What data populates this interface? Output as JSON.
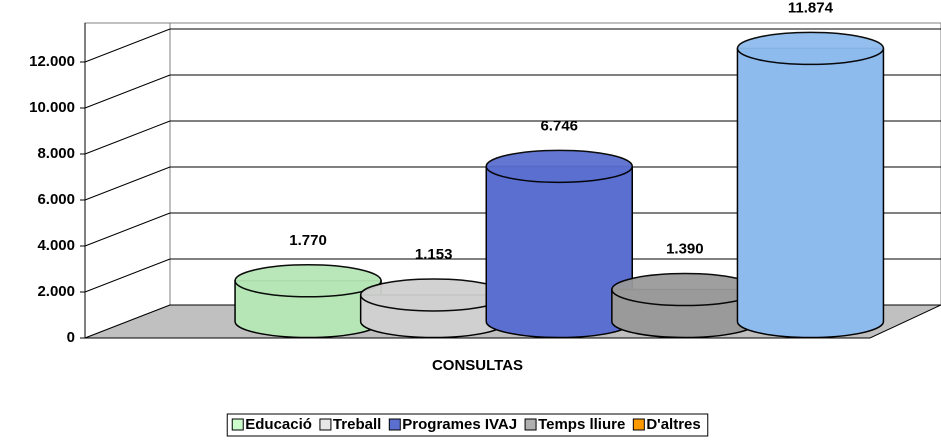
{
  "chart_data": {
    "type": "cylinder-bar",
    "categories": [
      "CONSULTAS"
    ],
    "series": [
      {
        "name": "Educació",
        "color": "#ccffcc",
        "mark_color": "#b6e6b6",
        "values": [
          1770
        ],
        "value_labels": [
          "1.770"
        ]
      },
      {
        "name": "Treball",
        "color": "#e6e6e6",
        "mark_color": "#d0d0d0",
        "values": [
          1153
        ],
        "value_labels": [
          "1.153"
        ]
      },
      {
        "name": "Programes IVAJ",
        "color": "#5a6fd0",
        "mark_color": "#5a6fd0",
        "values": [
          6746
        ],
        "value_labels": [
          "6.746"
        ]
      },
      {
        "name": "Temps lliure",
        "color": "#b0b0b0",
        "mark_color": "#9a9a9a",
        "values": [
          1390
        ],
        "value_labels": [
          "1.390"
        ]
      },
      {
        "name": "D'altres",
        "color": "#ff9900",
        "mark_color": "#8ebbee",
        "values": [
          11874
        ],
        "value_labels": [
          "11.874"
        ]
      }
    ],
    "ylim": [
      0,
      14000
    ],
    "yticks": [
      0,
      {
        "value": 2000,
        "label": "2.000"
      },
      {
        "value": 4000,
        "label": "4.000"
      },
      {
        "value": 6000,
        "label": "6.000"
      },
      {
        "value": 8000,
        "label": "8.000"
      },
      {
        "value": 10000,
        "label": "10.000"
      },
      {
        "value": 12000,
        "label": "12.000"
      }
    ],
    "grid": true,
    "legend": "bottom"
  }
}
